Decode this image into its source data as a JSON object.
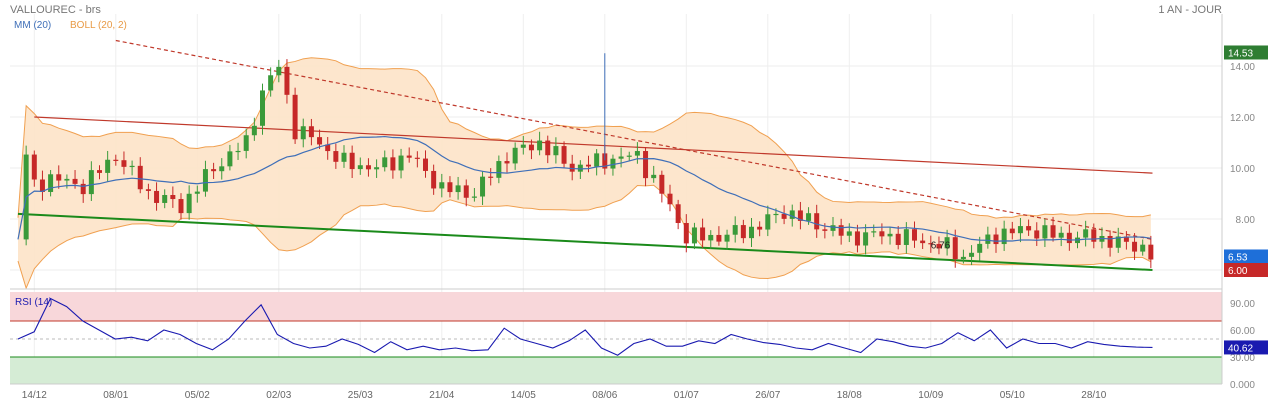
{
  "header": {
    "title": "VALLOUREC - brs",
    "period": "1 AN - JOUR"
  },
  "legend": {
    "ma_label": "MM (20)",
    "boll_label": "BOLL (20, 2)"
  },
  "colors": {
    "up": "#3a9a3a",
    "down": "#c62828",
    "ma": "#3f6fb8",
    "boll_fill": "#fde3c8",
    "boll_line": "#f0a050",
    "trend_red": "#c0392b",
    "trend_green": "#1a8a1a",
    "rsi": "#1a1ab0",
    "rsi_over": "#f8d7da",
    "rsi_under": "#d5ecd5"
  },
  "chart_data": [
    {
      "type": "candlestick",
      "title": "VALLOUREC - brs",
      "ylim": [
        5.0,
        15.0
      ],
      "y_ticks": [
        "14.00",
        "12.00",
        "10.00",
        "8.00"
      ],
      "x_ticks": [
        "14/12",
        "08/01",
        "05/02",
        "02/03",
        "25/03",
        "21/04",
        "14/05",
        "08/06",
        "01/07",
        "26/07",
        "18/08",
        "10/09",
        "05/10",
        "28/10"
      ],
      "x_tick_pos": [
        1,
        6,
        11,
        16,
        21,
        26,
        31,
        36,
        41,
        46,
        51,
        56,
        61,
        66
      ],
      "close_anchors": [
        [
          0,
          7.2
        ],
        [
          0.5,
          10.5
        ],
        [
          1,
          9.3
        ],
        [
          2,
          9.6
        ],
        [
          4,
          9.3
        ],
        [
          6,
          10.5
        ],
        [
          8,
          9.0
        ],
        [
          10,
          8.5
        ],
        [
          12,
          10.0
        ],
        [
          14,
          11.0
        ],
        [
          15,
          13.0
        ],
        [
          16,
          14.0
        ],
        [
          17,
          11.5
        ],
        [
          18,
          11.2
        ],
        [
          20,
          10.2
        ],
        [
          22,
          10.0
        ],
        [
          24,
          10.5
        ],
        [
          26,
          9.2
        ],
        [
          28,
          9.0
        ],
        [
          30,
          10.5
        ],
        [
          32,
          11.0
        ],
        [
          34,
          10.0
        ],
        [
          36,
          10.3
        ],
        [
          38,
          10.5
        ],
        [
          40,
          8.5
        ],
        [
          41,
          7.3
        ],
        [
          43,
          7.3
        ],
        [
          45,
          7.6
        ],
        [
          47,
          8.3
        ],
        [
          49,
          7.8
        ],
        [
          51,
          7.3
        ],
        [
          53,
          7.4
        ],
        [
          55,
          7.2
        ],
        [
          57,
          6.9
        ],
        [
          58,
          6.5
        ],
        [
          60,
          7.4
        ],
        [
          62,
          7.6
        ],
        [
          64,
          7.3
        ],
        [
          66,
          7.3
        ],
        [
          68,
          7.0
        ],
        [
          69,
          6.9
        ],
        [
          69.6,
          6.53
        ]
      ],
      "series": [
        {
          "name": "MM (20)",
          "type": "line"
        },
        {
          "name": "BOLL (20, 2)",
          "type": "band"
        }
      ],
      "annotations": [
        {
          "text": "6.76",
          "x": 56,
          "y": 6.76
        }
      ],
      "trendlines": [
        {
          "color": "red",
          "style": "dashed",
          "from": [
            6,
            15.0
          ],
          "to": [
            69.6,
            7.2
          ]
        },
        {
          "color": "red",
          "style": "solid",
          "from": [
            1,
            12.0
          ],
          "to": [
            69.6,
            9.8
          ]
        },
        {
          "color": "green",
          "style": "solid",
          "from": [
            0,
            8.2
          ],
          "to": [
            69.6,
            6.0
          ]
        }
      ],
      "spike": {
        "x": 36,
        "high": 14.5
      },
      "price_labels": [
        {
          "text": "14.53",
          "value": 14.53,
          "color": "#2e7d32"
        },
        {
          "text": "6.53",
          "value": 6.53,
          "color": "#1e6fd9"
        },
        {
          "text": "6.00",
          "value": 6.0,
          "color": "#c62828"
        }
      ]
    },
    {
      "type": "line",
      "title": "RSI (14)",
      "ylim": [
        0,
        100
      ],
      "y_ticks": [
        "90.00",
        "60.00",
        "30.00",
        "0.000"
      ],
      "zones": {
        "overbought": 70,
        "oversold": 30,
        "mid": 50
      },
      "values": [
        50,
        58,
        95,
        86,
        70,
        60,
        50,
        52,
        48,
        60,
        55,
        45,
        38,
        50,
        70,
        88,
        55,
        45,
        40,
        42,
        50,
        44,
        35,
        47,
        38,
        42,
        38,
        40,
        37,
        38,
        62,
        50,
        45,
        40,
        48,
        60,
        40,
        32,
        45,
        50,
        42,
        42,
        48,
        45,
        55,
        50,
        46,
        44,
        40,
        38,
        45,
        40,
        35,
        50,
        47,
        42,
        40,
        45,
        57,
        48,
        60,
        40,
        50,
        45,
        45,
        40,
        47,
        44,
        42,
        41,
        40.6
      ],
      "price_label": {
        "text": "40.62",
        "value": 40.62
      }
    }
  ]
}
